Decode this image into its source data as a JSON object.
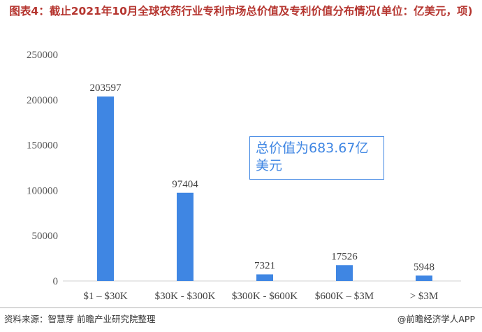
{
  "chart_data": {
    "type": "bar",
    "title": "图表4：截止2021年10月全球农药行业专利市场总价值及专利价值分布情况(单位：亿美元，项)",
    "categories": [
      "$1 – $30K",
      "$30K - $300K",
      "$300K - $600K",
      "$600K – $3M",
      "> $3M"
    ],
    "values": [
      203597,
      97404,
      7321,
      17526,
      5948
    ],
    "color": "#3f86e3",
    "ylim": [
      0,
      250000
    ],
    "yticks": [
      0,
      50000,
      100000,
      150000,
      200000,
      250000
    ],
    "grid": false,
    "annotation": "总价值为683.67亿美元"
  },
  "footer": {
    "source": "资料来源：智慧芽 前瞻产业研究院整理",
    "brand": "@前瞻经济学人APP"
  }
}
